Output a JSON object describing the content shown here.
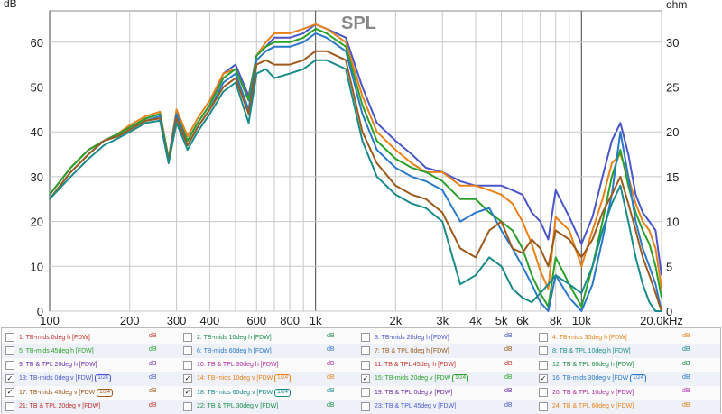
{
  "chart_data": {
    "type": "line",
    "title": "SPL",
    "ylabel": "dB",
    "y2label": "ohm",
    "xscale": "log",
    "xlim": [
      100,
      20000
    ],
    "ylim": [
      0,
      67
    ],
    "y2lim": [
      0,
      33.5
    ],
    "x_ticks": [
      {
        "v": 100,
        "label": "100"
      },
      {
        "v": 200,
        "label": "200"
      },
      {
        "v": 300,
        "label": "300"
      },
      {
        "v": 400,
        "label": "400"
      },
      {
        "v": 600,
        "label": "600"
      },
      {
        "v": 800,
        "label": "800"
      },
      {
        "v": 1000,
        "label": "1k"
      },
      {
        "v": 2000,
        "label": "2k"
      },
      {
        "v": 3000,
        "label": "3k"
      },
      {
        "v": 4000,
        "label": "4k"
      },
      {
        "v": 5000,
        "label": "5k"
      },
      {
        "v": 6000,
        "label": "6k"
      },
      {
        "v": 8000,
        "label": "8k"
      },
      {
        "v": 10000,
        "label": "10k"
      },
      {
        "v": 20000,
        "label": "20.0kHz"
      }
    ],
    "y_ticks": [
      0,
      10,
      20,
      30,
      40,
      50,
      60
    ],
    "y2_ticks": [
      0,
      5,
      10,
      15,
      20,
      25,
      30
    ],
    "grid": true,
    "legend_position": "bottom",
    "series": [
      {
        "name": "13: TB-mids 0deg v [FDW]",
        "color": "#4a56c8",
        "x": [
          100,
          120,
          140,
          160,
          180,
          200,
          230,
          260,
          280,
          300,
          330,
          360,
          400,
          450,
          500,
          560,
          600,
          650,
          700,
          800,
          900,
          1000,
          1100,
          1300,
          1500,
          1700,
          2000,
          2300,
          2600,
          3000,
          3500,
          4000,
          4500,
          5000,
          5500,
          6000,
          6500,
          7000,
          7500,
          8000,
          9000,
          10000,
          11000,
          12000,
          13000,
          14000,
          15000,
          16000,
          17000,
          18000,
          19000,
          20000
        ],
        "y": [
          26,
          32,
          36,
          38,
          39.5,
          41,
          43,
          44,
          34,
          44,
          38,
          42,
          46,
          53,
          55,
          48,
          57,
          59,
          61,
          61,
          62,
          64,
          63,
          61,
          50,
          42,
          38,
          35,
          32,
          31,
          29,
          28,
          28,
          28,
          27,
          26,
          22,
          20,
          16,
          27,
          21,
          15,
          21,
          30,
          38,
          42,
          35,
          26,
          22,
          20,
          18,
          8
        ]
      },
      {
        "name": "14: TB-mids 10deg v [FDW]",
        "color": "#e8811a",
        "x": [
          100,
          120,
          140,
          160,
          180,
          200,
          230,
          260,
          280,
          300,
          330,
          360,
          400,
          450,
          500,
          560,
          600,
          650,
          700,
          800,
          900,
          1000,
          1100,
          1300,
          1500,
          1700,
          2000,
          2300,
          2600,
          3000,
          3500,
          4000,
          4500,
          5000,
          5500,
          6000,
          6500,
          7000,
          7500,
          8000,
          9000,
          10000,
          11000,
          12000,
          13000,
          14000,
          15000,
          16000,
          17000,
          18000,
          19000,
          20000
        ],
        "y": [
          26,
          32,
          36,
          38,
          39.5,
          41.5,
          43.5,
          44.5,
          34,
          45,
          39,
          43,
          47,
          53,
          54,
          47,
          57,
          60,
          62,
          62,
          63,
          64,
          63,
          60,
          48,
          40,
          36,
          33,
          31,
          31,
          28,
          28,
          27,
          26,
          24,
          20,
          15,
          9,
          5,
          21,
          18,
          10,
          18,
          25,
          33,
          35,
          30,
          24,
          20,
          18,
          14,
          5
        ]
      },
      {
        "name": "15: TB-mids 20deg v [FDW]",
        "color": "#2aa02a",
        "x": [
          100,
          120,
          140,
          160,
          180,
          200,
          230,
          260,
          280,
          300,
          330,
          360,
          400,
          450,
          500,
          560,
          600,
          650,
          700,
          800,
          900,
          1000,
          1100,
          1300,
          1500,
          1700,
          2000,
          2300,
          2600,
          3000,
          3500,
          4000,
          4500,
          5000,
          5500,
          6000,
          6500,
          7000,
          7500,
          8000,
          9000,
          10000,
          11000,
          12000,
          13000,
          14000,
          15000,
          16000,
          17000,
          18000,
          19000,
          20000
        ],
        "y": [
          26,
          32,
          36,
          38,
          39.5,
          41,
          43,
          44,
          34,
          44,
          38,
          42,
          46,
          52,
          54,
          47,
          57,
          59,
          60,
          60,
          61,
          63,
          62,
          59,
          46,
          38,
          34,
          32,
          31,
          29,
          25,
          25,
          22,
          20,
          18,
          14,
          8,
          4,
          1,
          12,
          6,
          1,
          10,
          20,
          30,
          36,
          28,
          22,
          18,
          15,
          10,
          3
        ]
      },
      {
        "name": "16: TB-mids 30deg v [FDW]",
        "color": "#2a78c8",
        "x": [
          100,
          120,
          140,
          160,
          180,
          200,
          230,
          260,
          280,
          300,
          330,
          360,
          400,
          450,
          500,
          560,
          600,
          650,
          700,
          800,
          900,
          1000,
          1100,
          1300,
          1500,
          1700,
          2000,
          2300,
          2600,
          3000,
          3500,
          4000,
          4500,
          5000,
          5500,
          6000,
          6500,
          7000,
          7500,
          8000,
          9000,
          10000,
          11000,
          12000,
          13000,
          14000,
          15000,
          16000,
          17000,
          18000,
          19000,
          20000
        ],
        "y": [
          25,
          31,
          35,
          38,
          39,
          40.5,
          42.5,
          43.5,
          33.5,
          44,
          37,
          41,
          45,
          51,
          53,
          45,
          56,
          58,
          59,
          59,
          60,
          62,
          61,
          58,
          44,
          36,
          32,
          30,
          29,
          27,
          20,
          22,
          23,
          18,
          14,
          10,
          6,
          2,
          -1,
          8,
          3,
          -2,
          6,
          16,
          26,
          40,
          30,
          20,
          14,
          10,
          6,
          0
        ]
      },
      {
        "name": "17: TB-mids 45deg v [FDW]",
        "color": "#9c5a1c",
        "x": [
          100,
          120,
          140,
          160,
          180,
          200,
          230,
          260,
          280,
          300,
          330,
          360,
          400,
          450,
          500,
          560,
          600,
          650,
          700,
          800,
          900,
          1000,
          1100,
          1300,
          1500,
          1700,
          2000,
          2300,
          2600,
          3000,
          3500,
          4000,
          4500,
          5000,
          5500,
          6000,
          6500,
          7000,
          7500,
          8000,
          9000,
          10000,
          11000,
          12000,
          13000,
          14000,
          15000,
          16000,
          17000,
          18000,
          19000,
          20000
        ],
        "y": [
          25,
          31,
          35,
          38,
          39,
          40.5,
          42.5,
          43,
          33.5,
          43,
          37,
          41,
          45,
          50,
          52,
          44,
          55,
          56,
          55,
          55,
          56,
          58,
          58,
          56,
          40,
          33,
          28,
          26,
          25,
          22,
          14,
          12,
          18,
          20,
          14,
          13,
          16,
          14,
          10,
          18,
          16,
          12,
          16,
          22,
          26,
          30,
          24,
          18,
          12,
          8,
          4,
          0
        ]
      },
      {
        "name": "18: TB-mids 60deg v [FDW]",
        "color": "#1a8a8a",
        "x": [
          100,
          120,
          140,
          160,
          180,
          200,
          230,
          260,
          280,
          300,
          330,
          360,
          400,
          450,
          500,
          560,
          600,
          650,
          700,
          800,
          900,
          1000,
          1100,
          1300,
          1500,
          1700,
          2000,
          2300,
          2600,
          3000,
          3500,
          4000,
          4500,
          5000,
          5500,
          6000,
          6500,
          7000,
          7500,
          8000,
          9000,
          10000,
          11000,
          12000,
          13000,
          14000,
          15000,
          16000,
          17000,
          18000,
          19000,
          20000
        ],
        "y": [
          25,
          30,
          34,
          37,
          38.5,
          40,
          42,
          42.5,
          33,
          42,
          36,
          40,
          44,
          49,
          51,
          42,
          53,
          54,
          52,
          53,
          54,
          56,
          56,
          54,
          38,
          30,
          26,
          24,
          23,
          20,
          6,
          8,
          12,
          10,
          5,
          3,
          2,
          4,
          6,
          8,
          6,
          4,
          10,
          18,
          24,
          28,
          20,
          12,
          6,
          2,
          0,
          -2
        ]
      }
    ]
  },
  "legend": {
    "entries": [
      {
        "label": "1: TB-mids 0deg h [FDW]",
        "unit": "dB",
        "color": "#c0302a",
        "checked": false,
        "smooth": ""
      },
      {
        "label": "2: TB-mids 10deg h [FDW]",
        "unit": "dB",
        "color": "#1a8a4a",
        "checked": false,
        "smooth": ""
      },
      {
        "label": "3: TB-mids 20deg h [FDW]",
        "unit": "dB",
        "color": "#4a56c8",
        "checked": false,
        "smooth": ""
      },
      {
        "label": "4: TB-mids 30deg h [FDW]",
        "unit": "dB",
        "color": "#e8811a",
        "checked": false,
        "smooth": ""
      },
      {
        "label": "5: TB-mids 45deg h [FDW]",
        "unit": "dB",
        "color": "#2aa02a",
        "checked": false,
        "smooth": ""
      },
      {
        "label": "6: TB-mids 60deg h [FDW]",
        "unit": "dB",
        "color": "#2a78c8",
        "checked": false,
        "smooth": ""
      },
      {
        "label": "7: TB & TPL 0deg h [FDW]",
        "unit": "dB",
        "color": "#9c5a1c",
        "checked": false,
        "smooth": ""
      },
      {
        "label": "8: TB & TPL 10deg h [FDW]",
        "unit": "dB",
        "color": "#1a8a8a",
        "checked": false,
        "smooth": ""
      },
      {
        "label": "9: TB & TPL 20deg h [FDW]",
        "unit": "dB",
        "color": "#6a2aa8",
        "checked": false,
        "smooth": ""
      },
      {
        "label": "10: TB & TPL 30deg h [FDW]",
        "unit": "dB",
        "color": "#b02aa0",
        "checked": false,
        "smooth": ""
      },
      {
        "label": "11: TB & TPL 45deg h [FDW]",
        "unit": "dB",
        "color": "#c0302a",
        "checked": false,
        "smooth": ""
      },
      {
        "label": "12: TB & TPL 60deg h [FDW]",
        "unit": "dB",
        "color": "#1a8a4a",
        "checked": false,
        "smooth": ""
      },
      {
        "label": "13: TB-mids 0deg v [FDW]",
        "unit": "dB",
        "color": "#4a56c8",
        "checked": true,
        "smooth": "1/24"
      },
      {
        "label": "14: TB-mids 10deg v [FDW",
        "unit": "dB",
        "color": "#e8811a",
        "checked": true,
        "smooth": "1/24"
      },
      {
        "label": "15: TB-mids 20deg v [FDW",
        "unit": "dB",
        "color": "#2aa02a",
        "checked": true,
        "smooth": "1/24"
      },
      {
        "label": "16: TB-mids 30deg v [FDW",
        "unit": "dB",
        "color": "#2a78c8",
        "checked": true,
        "smooth": "1/24"
      },
      {
        "label": "17: TB-mids 45deg v [FDW",
        "unit": "dB",
        "color": "#9c5a1c",
        "checked": true,
        "smooth": "1/24"
      },
      {
        "label": "18: TB-mids 60deg v [FDW",
        "unit": "dB",
        "color": "#1a8a8a",
        "checked": true,
        "smooth": "1/24"
      },
      {
        "label": "19: TB & TPL 0deg v [FDW]",
        "unit": "dB",
        "color": "#6a2aa8",
        "checked": false,
        "smooth": ""
      },
      {
        "label": "20: TB & TPL 10deg v [FDW]",
        "unit": "dB",
        "color": "#b02aa0",
        "checked": false,
        "smooth": ""
      },
      {
        "label": "21: TB & TPL 20deg v [FDW]",
        "unit": "dB",
        "color": "#c0302a",
        "checked": false,
        "smooth": ""
      },
      {
        "label": "22: TB & TPL 30deg v [FDW]",
        "unit": "dB",
        "color": "#1a8a4a",
        "checked": false,
        "smooth": ""
      },
      {
        "label": "23: TB & TPL 45deg v [FDW]",
        "unit": "dB",
        "color": "#4a56c8",
        "checked": false,
        "smooth": ""
      },
      {
        "label": "24: TB & TPL 60deg v [FDW]",
        "unit": "dB",
        "color": "#e8811a",
        "checked": false,
        "smooth": ""
      }
    ]
  }
}
